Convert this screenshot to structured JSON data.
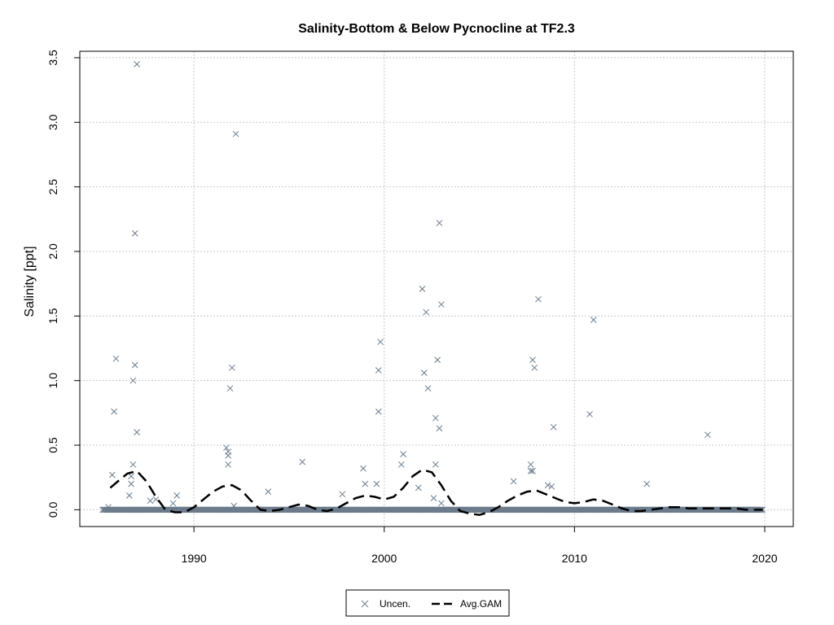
{
  "chart_data": {
    "type": "scatter",
    "title": "Salinity-Bottom & Below Pycnocline at TF2.3",
    "xlabel": "",
    "ylabel": "Salinity [ppt]",
    "xlim": [
      1984,
      2021.5
    ],
    "ylim": [
      -0.13,
      3.55
    ],
    "x_ticks": [
      1990,
      2000,
      2010,
      2020
    ],
    "x_tick_labels": [
      "1990",
      "2000",
      "2010",
      "2020"
    ],
    "y_ticks": [
      0.0,
      0.5,
      1.0,
      1.5,
      2.0,
      2.5,
      3.0,
      3.5
    ],
    "y_tick_labels": [
      "0.0",
      "0.5",
      "1.0",
      "1.5",
      "2.0",
      "2.5",
      "3.0",
      "3.5"
    ],
    "grid": true,
    "legend_position": "bottom",
    "series": [
      {
        "name": "Uncen.",
        "marker": "x",
        "color": "#6b7b8c",
        "baseline_range": [
          1985.2,
          2019.9
        ],
        "baseline_value": 0.0,
        "points": [
          [
            1985.5,
            0.02
          ],
          [
            1985.7,
            0.27
          ],
          [
            1985.8,
            0.76
          ],
          [
            1985.9,
            1.17
          ],
          [
            1986.6,
            0.11
          ],
          [
            1986.7,
            0.2
          ],
          [
            1986.7,
            0.26
          ],
          [
            1986.8,
            0.35
          ],
          [
            1986.8,
            1.0
          ],
          [
            1986.9,
            1.12
          ],
          [
            1986.9,
            2.14
          ],
          [
            1987.0,
            3.45
          ],
          [
            1987.0,
            0.6
          ],
          [
            1987.7,
            0.07
          ],
          [
            1988.0,
            0.08
          ],
          [
            1988.9,
            0.05
          ],
          [
            1989.1,
            0.11
          ],
          [
            1991.7,
            0.48
          ],
          [
            1991.8,
            0.45
          ],
          [
            1991.8,
            0.42
          ],
          [
            1991.8,
            0.35
          ],
          [
            1991.9,
            0.94
          ],
          [
            1992.0,
            1.1
          ],
          [
            1992.1,
            0.03
          ],
          [
            1992.2,
            2.91
          ],
          [
            1993.9,
            0.14
          ],
          [
            1995.7,
            0.37
          ],
          [
            1997.8,
            0.12
          ],
          [
            1998.9,
            0.32
          ],
          [
            1999.0,
            0.2
          ],
          [
            1999.6,
            0.2
          ],
          [
            1999.7,
            0.76
          ],
          [
            1999.7,
            1.08
          ],
          [
            1999.8,
            1.3
          ],
          [
            2000.9,
            0.35
          ],
          [
            2001.0,
            0.43
          ],
          [
            2001.8,
            0.17
          ],
          [
            2002.0,
            1.71
          ],
          [
            2002.1,
            1.06
          ],
          [
            2002.2,
            1.53
          ],
          [
            2002.3,
            0.94
          ],
          [
            2002.6,
            0.09
          ],
          [
            2002.7,
            0.35
          ],
          [
            2002.7,
            0.71
          ],
          [
            2002.8,
            1.16
          ],
          [
            2002.9,
            0.63
          ],
          [
            2002.9,
            2.22
          ],
          [
            2003.0,
            1.59
          ],
          [
            2003.0,
            0.05
          ],
          [
            2006.8,
            0.22
          ],
          [
            2007.7,
            0.3
          ],
          [
            2007.7,
            0.35
          ],
          [
            2007.8,
            0.3
          ],
          [
            2007.8,
            1.16
          ],
          [
            2007.9,
            1.1
          ],
          [
            2008.1,
            1.63
          ],
          [
            2008.6,
            0.19
          ],
          [
            2008.8,
            0.18
          ],
          [
            2008.9,
            0.64
          ],
          [
            2010.8,
            0.74
          ],
          [
            2011.0,
            1.47
          ],
          [
            2013.8,
            0.2
          ],
          [
            2017.0,
            0.58
          ]
        ]
      },
      {
        "name": "Avg.GAM",
        "line": "dashed",
        "color": "#000000",
        "x": [
          1985.6,
          1986.0,
          1986.5,
          1987.0,
          1987.5,
          1988.0,
          1988.5,
          1989.0,
          1989.5,
          1990.0,
          1990.5,
          1991.0,
          1991.5,
          1992.0,
          1992.5,
          1993.0,
          1993.5,
          1994.0,
          1994.5,
          1995.0,
          1995.5,
          1996.0,
          1996.5,
          1997.0,
          1997.5,
          1998.0,
          1998.5,
          1999.0,
          1999.5,
          2000.0,
          2000.5,
          2001.0,
          2001.5,
          2002.0,
          2002.5,
          2003.0,
          2003.5,
          2004.0,
          2004.5,
          2005.0,
          2005.5,
          2006.0,
          2006.5,
          2007.0,
          2007.5,
          2008.0,
          2008.5,
          2009.0,
          2009.5,
          2010.0,
          2010.5,
          2011.0,
          2011.5,
          2012.0,
          2012.5,
          2013.0,
          2013.5,
          2014.0,
          2014.5,
          2015.0,
          2015.5,
          2016.0,
          2016.5,
          2017.0,
          2017.5,
          2018.0,
          2018.5,
          2019.0,
          2019.5,
          2019.9
        ],
        "y": [
          0.17,
          0.22,
          0.28,
          0.3,
          0.22,
          0.1,
          0.0,
          -0.02,
          -0.02,
          0.02,
          0.08,
          0.14,
          0.18,
          0.19,
          0.15,
          0.07,
          0.0,
          -0.01,
          0.0,
          0.02,
          0.04,
          0.03,
          0.0,
          -0.01,
          0.01,
          0.05,
          0.09,
          0.11,
          0.1,
          0.08,
          0.1,
          0.17,
          0.26,
          0.31,
          0.29,
          0.19,
          0.07,
          -0.01,
          -0.03,
          -0.04,
          -0.02,
          0.02,
          0.07,
          0.11,
          0.14,
          0.15,
          0.12,
          0.09,
          0.06,
          0.05,
          0.06,
          0.08,
          0.07,
          0.04,
          0.01,
          -0.01,
          -0.01,
          0.0,
          0.01,
          0.02,
          0.02,
          0.01,
          0.01,
          0.01,
          0.01,
          0.01,
          0.01,
          0.0,
          0.0,
          0.0
        ]
      }
    ]
  }
}
